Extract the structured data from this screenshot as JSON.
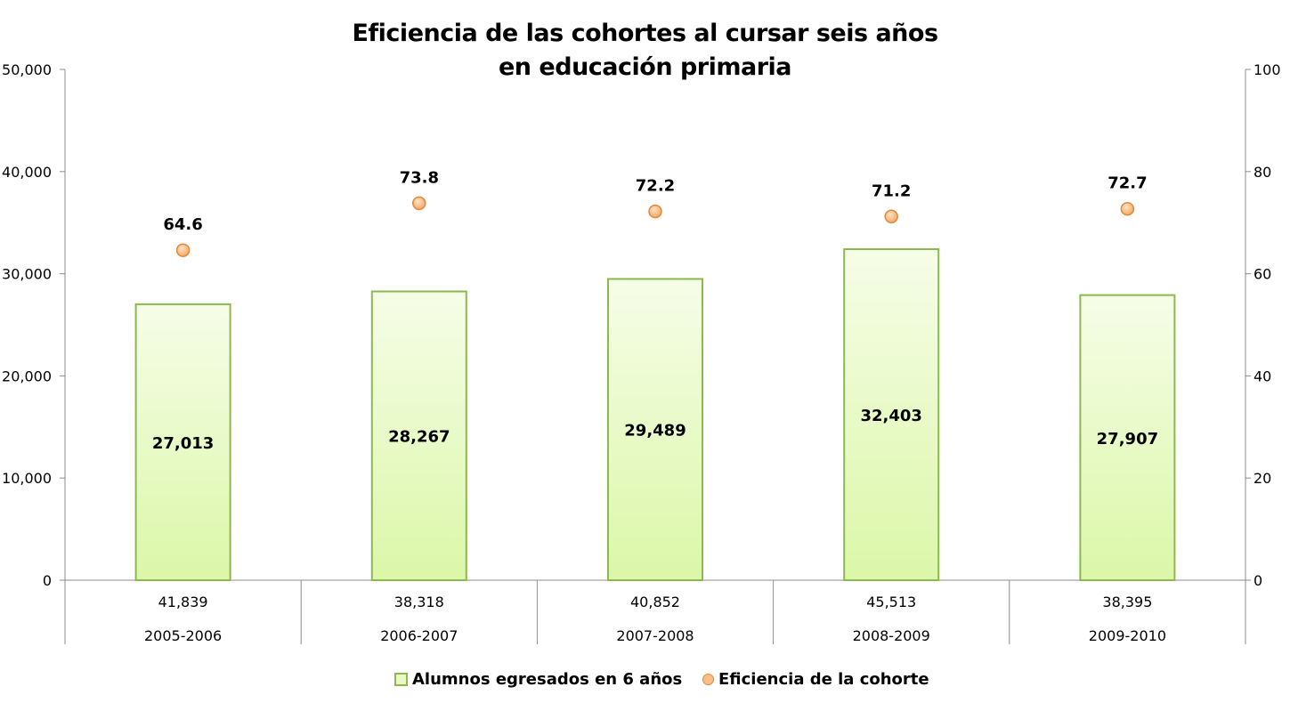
{
  "chart_data": {
    "type": "bar",
    "title": [
      "Eficiencia de las cohortes al cursar seis años",
      "en educación primaria"
    ],
    "categories": [
      "2005-2006",
      "2006-2007",
      "2007-2008",
      "2008-2009",
      "2009-2010"
    ],
    "table_row": [
      "41,839",
      "38,318",
      "40,852",
      "45,513",
      "38,395"
    ],
    "series": [
      {
        "name": "Alumnos egresados en 6 años",
        "type": "bar",
        "axis": "left",
        "values": [
          27013,
          28267,
          29489,
          32403,
          27907
        ],
        "labels": [
          "27,013",
          "28,267",
          "29,489",
          "32,403",
          "27,907"
        ],
        "color": "#e2f7b8",
        "border_color": "#8cb94e"
      },
      {
        "name": "Eficiencia de la cohorte",
        "type": "scatter",
        "axis": "right",
        "values": [
          64.6,
          73.8,
          72.2,
          71.2,
          72.7
        ],
        "labels": [
          "64.6",
          "73.8",
          "72.2",
          "71.2",
          "72.7"
        ],
        "color": "#f9bf8a",
        "border_color": "#e08a3c"
      }
    ],
    "y_left": {
      "lim": [
        0,
        50000
      ],
      "ticks": [
        0,
        10000,
        20000,
        30000,
        40000,
        50000
      ],
      "tick_labels": [
        "0",
        "10,000",
        "20,000",
        "30,000",
        "40,000",
        "50,000"
      ]
    },
    "y_right": {
      "lim": [
        0,
        100
      ],
      "ticks": [
        0,
        20,
        40,
        60,
        80,
        100
      ],
      "tick_labels": [
        "0",
        "20",
        "40",
        "60",
        "80",
        "100"
      ]
    },
    "grid": false,
    "legend_position": "bottom"
  }
}
